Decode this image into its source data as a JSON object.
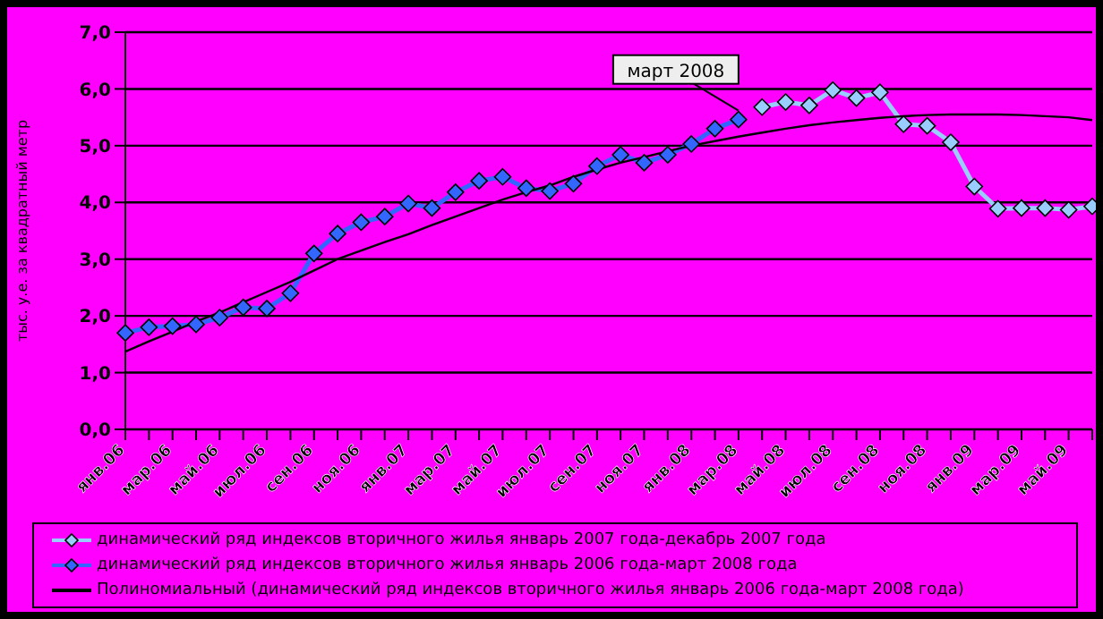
{
  "chart_data": {
    "type": "line",
    "ylabel": "тыс. у.е. за квадратный метр",
    "categories": [
      "янв.06",
      null,
      "мар.06",
      null,
      "май.06",
      null,
      "июл.06",
      null,
      "сен.06",
      null,
      "ноя.06",
      null,
      "янв.07",
      null,
      "мар.07",
      null,
      "май.07",
      null,
      "июл.07",
      null,
      "сен.07",
      null,
      "ноя.07",
      null,
      "янв.08",
      null,
      "мар.08",
      null,
      "май.08",
      null,
      "июл.08",
      null,
      "сен.08",
      null,
      "ноя.08",
      null,
      "янв.09",
      null,
      "мар.09",
      null,
      "май.09",
      null
    ],
    "series": [
      {
        "name": "динамический ряд индексов вторичного жилья январь 2007 года-декабрь 2007 года",
        "color": "#99ccff",
        "values": [
          null,
          null,
          null,
          null,
          null,
          null,
          null,
          null,
          null,
          null,
          null,
          null,
          null,
          null,
          null,
          null,
          null,
          null,
          null,
          null,
          null,
          null,
          null,
          null,
          null,
          null,
          null,
          5.68,
          5.77,
          5.71,
          5.98,
          5.84,
          5.94,
          5.38,
          5.35,
          5.06,
          4.28,
          3.89,
          3.9,
          3.9,
          3.87,
          3.93
        ]
      },
      {
        "name": "динамический ряд индексов вторичного жилья январь 2006 года-март 2008 года",
        "color": "#3366ff",
        "values": [
          1.7,
          1.8,
          1.82,
          1.85,
          1.97,
          2.15,
          2.13,
          2.4,
          3.1,
          3.45,
          3.65,
          3.75,
          3.98,
          3.9,
          4.18,
          4.38,
          4.45,
          4.25,
          4.2,
          4.33,
          4.64,
          4.84,
          4.7,
          4.84,
          5.03,
          5.3,
          5.46,
          null,
          null,
          null,
          null,
          null,
          null,
          null,
          null,
          null,
          null,
          null,
          null,
          null,
          null,
          null
        ]
      },
      {
        "name": "Полиномиальный (динамический ряд индексов вторичного жилья январь 2006 года-март 2008 года)",
        "color": "#000000",
        "type": "line",
        "marker": "none",
        "values": [
          1.37,
          1.55,
          1.72,
          1.9,
          2.06,
          2.24,
          2.42,
          2.6,
          2.8,
          3.0,
          3.15,
          3.3,
          3.44,
          3.6,
          3.75,
          3.9,
          4.05,
          4.18,
          4.3,
          4.45,
          4.58,
          4.7,
          4.8,
          4.9,
          5.0,
          5.08,
          5.16,
          5.23,
          5.3,
          5.36,
          5.41,
          5.45,
          5.49,
          5.52,
          5.54,
          5.55,
          5.55,
          5.55,
          5.54,
          5.52,
          5.5,
          5.45
        ]
      }
    ],
    "ylim": [
      0,
      7
    ],
    "yticks": [
      {
        "value": 0,
        "label": "0,0"
      },
      {
        "value": 1,
        "label": "1,0"
      },
      {
        "value": 2,
        "label": "2,0"
      },
      {
        "value": 3,
        "label": "3,0"
      },
      {
        "value": 4,
        "label": "4,0"
      },
      {
        "value": 5,
        "label": "5,0"
      },
      {
        "value": 6,
        "label": "6,0"
      },
      {
        "value": 7,
        "label": "7,0"
      }
    ],
    "grid": "y",
    "legend": "bottom",
    "marker": "diamond",
    "line_style": "solid",
    "annotations": [
      {
        "text": "март 2008",
        "x": "мар.08",
        "y": 5.46
      }
    ]
  }
}
